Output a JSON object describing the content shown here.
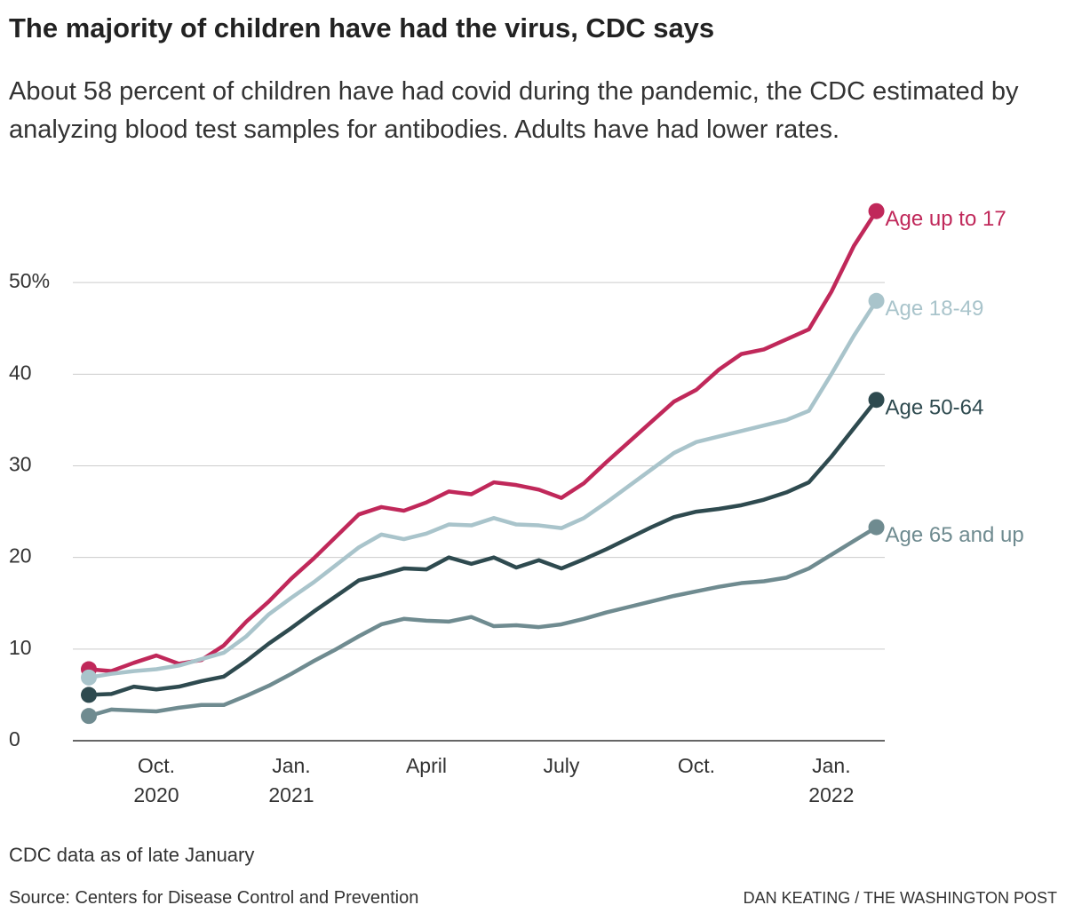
{
  "chart_data": {
    "type": "line",
    "title": "The majority of children have had the virus, CDC says",
    "subtitle": "About 58 percent of children have had covid during the pandemic, the CDC estimated by analyzing blood test samples for antibodies. Adults have had lower rates.",
    "note": "CDC data as of late January",
    "source": "Source: Centers for Disease Control and Prevention",
    "credit": "DAN KEATING / THE WASHINGTON POST",
    "categories": [
      null,
      null,
      null,
      "Oct.",
      null,
      null,
      null,
      null,
      null,
      "Jan.",
      null,
      null,
      null,
      null,
      null,
      "April",
      null,
      null,
      null,
      null,
      null,
      "July",
      null,
      null,
      null,
      null,
      null,
      "Oct.",
      null,
      null,
      null,
      null,
      null,
      "Jan.",
      null,
      null
    ],
    "years": [
      null,
      null,
      null,
      "2020",
      null,
      null,
      null,
      null,
      null,
      "2021",
      null,
      null,
      null,
      null,
      null,
      null,
      null,
      null,
      null,
      null,
      null,
      null,
      null,
      null,
      null,
      null,
      null,
      null,
      null,
      null,
      null,
      null,
      null,
      "2022",
      null,
      null
    ],
    "series": [
      {
        "name": "Age up to 17",
        "color": "#c0285a",
        "values": [
          7.8,
          7.6,
          8.5,
          9.3,
          8.4,
          8.8,
          10.4,
          13.0,
          15.2,
          17.7,
          19.9,
          22.3,
          24.7,
          25.5,
          25.1,
          26.0,
          27.2,
          26.9,
          28.2,
          27.9,
          27.4,
          26.5,
          28.1,
          30.4,
          32.6,
          34.8,
          37.0,
          38.3,
          40.5,
          42.2,
          42.7,
          43.8,
          44.9,
          49.0,
          54.0,
          57.8
        ]
      },
      {
        "name": "Age 18-49",
        "color": "#a9c4cb",
        "values": [
          6.9,
          7.3,
          7.6,
          7.8,
          8.2,
          8.9,
          9.6,
          11.4,
          13.8,
          15.6,
          17.3,
          19.2,
          21.1,
          22.5,
          22.0,
          22.6,
          23.6,
          23.5,
          24.3,
          23.6,
          23.5,
          23.2,
          24.3,
          26.0,
          27.8,
          29.6,
          31.4,
          32.6,
          33.2,
          33.8,
          34.4,
          35.0,
          36.0,
          40.0,
          44.2,
          48.0
        ]
      },
      {
        "name": "Age 50-64",
        "color": "#2e4a4f",
        "values": [
          5.0,
          5.1,
          5.9,
          5.6,
          5.9,
          6.5,
          7.0,
          8.7,
          10.6,
          12.3,
          14.1,
          15.8,
          17.5,
          18.1,
          18.8,
          18.7,
          20.0,
          19.3,
          20.0,
          18.9,
          19.7,
          18.8,
          19.8,
          20.9,
          22.1,
          23.3,
          24.4,
          25.0,
          25.3,
          25.7,
          26.3,
          27.1,
          28.2,
          31.0,
          34.1,
          37.2
        ]
      },
      {
        "name": "Age 65 and up",
        "color": "#6f8b90",
        "values": [
          2.7,
          3.4,
          3.3,
          3.2,
          3.6,
          3.9,
          3.9,
          4.9,
          6.0,
          7.3,
          8.7,
          10.0,
          11.4,
          12.7,
          13.3,
          13.1,
          13.0,
          13.5,
          12.5,
          12.6,
          12.4,
          12.7,
          13.3,
          14.0,
          14.6,
          15.2,
          15.8,
          16.3,
          16.8,
          17.2,
          17.4,
          17.8,
          18.8,
          20.3,
          21.8,
          23.3
        ]
      }
    ],
    "ylim": [
      0,
      60
    ],
    "yticks": [
      0,
      10,
      20,
      30,
      40,
      {
        "value": 50,
        "label": "50%"
      }
    ],
    "grid": true
  }
}
